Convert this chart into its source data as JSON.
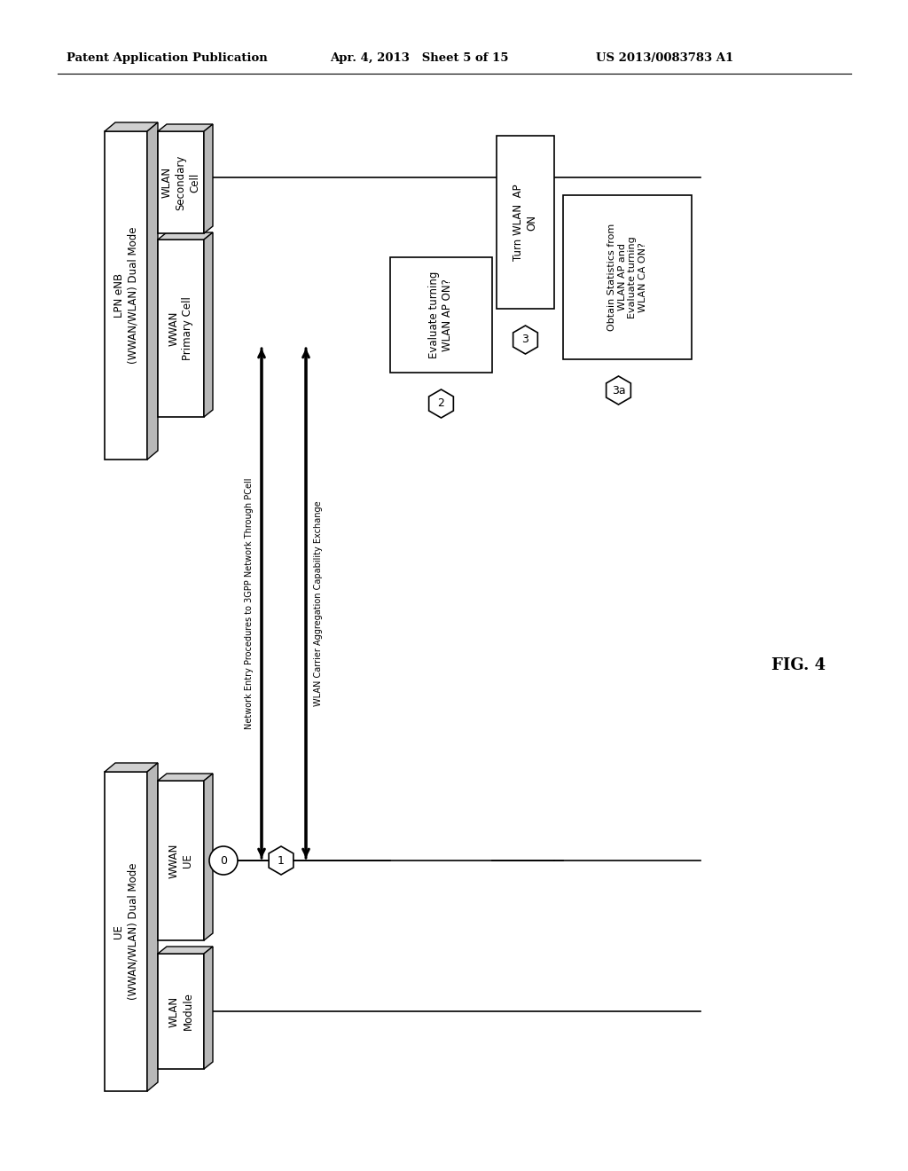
{
  "bg_color": "#ffffff",
  "header_left": "Patent Application Publication",
  "header_mid": "Apr. 4, 2013   Sheet 5 of 15",
  "header_right": "US 2013/0083783 A1",
  "fig_label": "FIG. 4",
  "ue_outer_label": "UE\n(WWAN/WLAN) Dual Mode",
  "ue_wwan_label": "WWAN\nUE",
  "ue_wlan_label": "WLAN\nModule",
  "lpn_outer_label": "LPN eNB\n(WWAN/WLAN) Dual Mode",
  "lpn_wwan_label": "WWAN\nPrimary Cell",
  "lpn_wlan_label": "WLAN\nSecondary\nCell",
  "box2_label": "Evaluate turning\nWLAN AP ON?",
  "box3_label": "Turn WLAN  AP\nON",
  "box3a_label": "Obtain Statistics from\nWLAN AP and\nEvaluate turning\nWLAN CA ON?",
  "arrow1_label": "Network Entry Procedures to 3GPP Network Through PCell",
  "arrow2_label": "WLAN Carrier Aggregation Capability Exchange",
  "circle0_label": "0",
  "circle1_label": "1",
  "circle2_label": "2",
  "circle3_label": "3",
  "circle3a_label": "3a"
}
